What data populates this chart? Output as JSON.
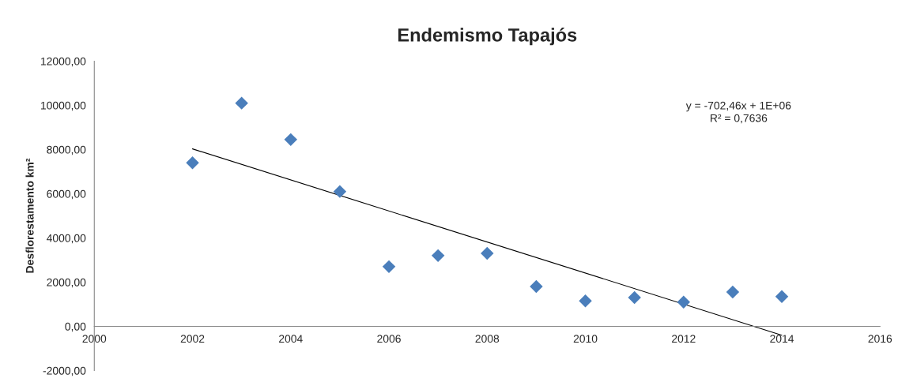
{
  "chart_data": {
    "type": "scatter",
    "title": "Endemismo Tapajós",
    "ylabel": "Desflorestamento km²",
    "x": [
      2002,
      2003,
      2004,
      2005,
      2006,
      2007,
      2008,
      2009,
      2010,
      2011,
      2012,
      2013,
      2014
    ],
    "series": [
      {
        "color": "#4a7ebb",
        "marker": "diamond",
        "values": [
          7400,
          10100,
          8450,
          6100,
          2700,
          3200,
          3300,
          1800,
          1150,
          1300,
          1100,
          1550,
          1350
        ]
      },
      {
        "type": "line",
        "color": "#000000",
        "marker": "none",
        "line_style": "solid",
        "x": [
          2002,
          2014
        ],
        "values": [
          8030,
          -400
        ]
      }
    ],
    "annotations": [
      "y = -702,46x + 1E+06\nR² = 0,7636"
    ],
    "xlim": [
      2000,
      2016
    ],
    "xticks": [
      2000,
      2002,
      2004,
      2006,
      2008,
      2010,
      2012,
      2014,
      2016
    ],
    "ylim": [
      -2000,
      12000
    ],
    "yticks": [
      {
        "value": -2000,
        "label": "-2000,00"
      },
      {
        "value": 0,
        "label": "0,00"
      },
      {
        "value": 2000,
        "label": "2000,00"
      },
      {
        "value": 4000,
        "label": "4000,00"
      },
      {
        "value": 6000,
        "label": "6000,00"
      },
      {
        "value": 8000,
        "label": "8000,00"
      },
      {
        "value": 10000,
        "label": "10000,00"
      },
      {
        "value": 12000,
        "label": "12000,00"
      }
    ],
    "grid": false,
    "legend": false
  }
}
